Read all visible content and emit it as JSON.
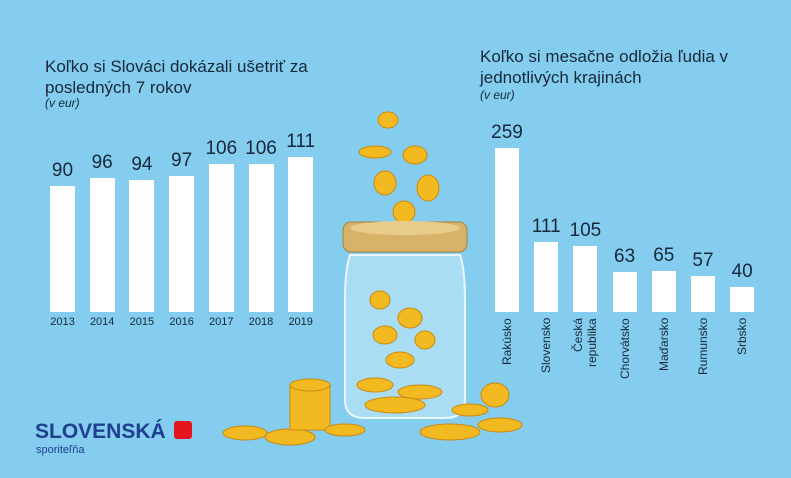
{
  "chart_data": [
    {
      "type": "bar",
      "title": "Koľko si Slováci dokázali ušetriť za posledných 7 rokov",
      "subtitle": "(v eur)",
      "categories": [
        "2013",
        "2014",
        "2015",
        "2016",
        "2017",
        "2018",
        "2019"
      ],
      "values": [
        90,
        96,
        94,
        97,
        106,
        106,
        111
      ],
      "color": "#ffffff"
    },
    {
      "type": "bar",
      "title": "Koľko si mesačne odložia ľudia v jednotlivých krajinách",
      "subtitle": "(v eur)",
      "categories": [
        "Rakúsko",
        "Slovensko",
        "Česká republika",
        "Chorvátsko",
        "Maďarsko",
        "Rumunsko",
        "Srbsko"
      ],
      "values": [
        259,
        111,
        105,
        63,
        65,
        57,
        40
      ],
      "color": "#ffffff"
    }
  ],
  "brand": {
    "name": "SLOVENSKÁ",
    "sub": "sporiteľňa"
  }
}
